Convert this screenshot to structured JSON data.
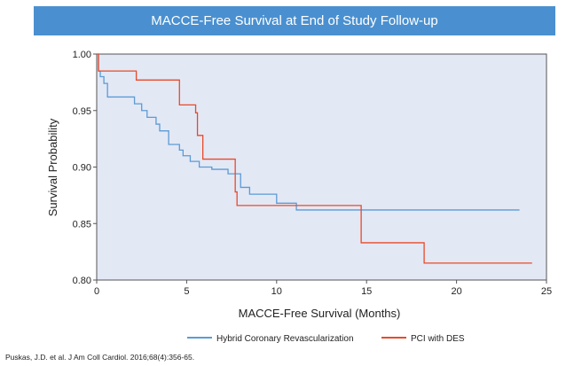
{
  "chart_data": {
    "type": "line",
    "title": "MACCE-Free Survival at End of Study Follow-up",
    "xlabel": "MACCE-Free Survival (Months)",
    "ylabel": "Survival Probability",
    "xlim": [
      0,
      25
    ],
    "ylim": [
      0.8,
      1.0
    ],
    "xticks": [
      0,
      5,
      10,
      15,
      20,
      25
    ],
    "yticks": [
      0.8,
      0.85,
      0.9,
      0.95,
      1.0
    ],
    "xtick_labels": [
      "0",
      "5",
      "10",
      "15",
      "20",
      "25"
    ],
    "ytick_labels": [
      "0.80",
      "0.85",
      "0.90",
      "0.95",
      "1.00"
    ],
    "grid": false,
    "legend_position": "bottom",
    "background_color": "#e3e8f5",
    "series": [
      {
        "name": "Hybrid Coronary Revascularization",
        "color": "#5b9bd5",
        "step": true,
        "x": [
          0,
          0.1,
          0.2,
          0.4,
          0.6,
          2.1,
          2.5,
          2.8,
          3.3,
          3.5,
          4.0,
          4.6,
          4.8,
          5.2,
          5.7,
          6.4,
          7.3,
          8.0,
          8.5,
          10.0,
          11.1,
          23.5
        ],
        "y": [
          1.0,
          0.985,
          0.98,
          0.974,
          0.962,
          0.956,
          0.95,
          0.944,
          0.938,
          0.932,
          0.92,
          0.915,
          0.91,
          0.905,
          0.9,
          0.898,
          0.894,
          0.882,
          0.876,
          0.868,
          0.862,
          0.862
        ]
      },
      {
        "name": "PCI with DES",
        "color": "#e84a2a",
        "step": true,
        "x": [
          0,
          0.1,
          2.2,
          4.6,
          5.5,
          5.6,
          5.9,
          7.7,
          7.8,
          14.7,
          18.2,
          24.2
        ],
        "y": [
          1.0,
          0.985,
          0.977,
          0.955,
          0.948,
          0.928,
          0.907,
          0.878,
          0.866,
          0.833,
          0.815,
          0.815
        ]
      }
    ]
  },
  "citation": "Puskas, J.D. et al. J Am Coll Cardiol. 2016;68(4):356-65."
}
